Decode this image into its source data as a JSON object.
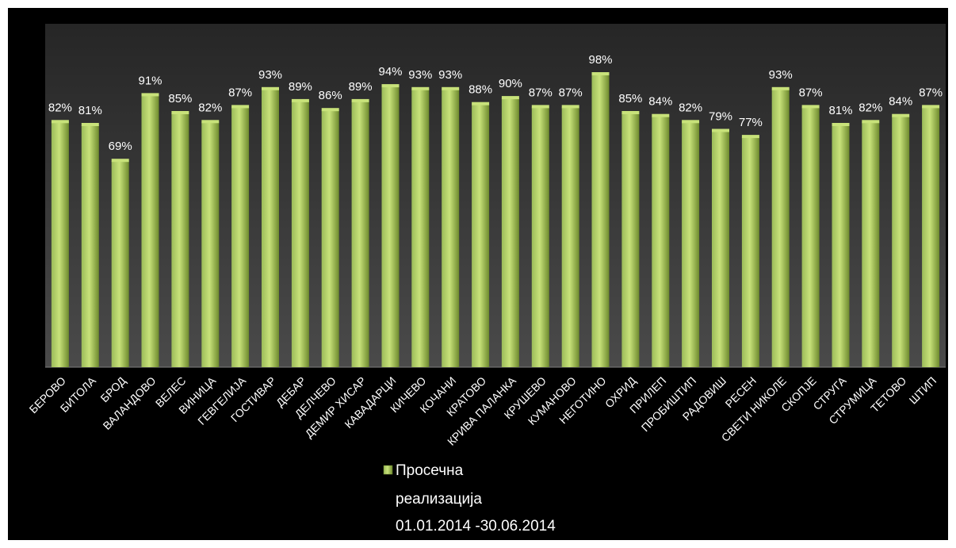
{
  "chart_data": {
    "type": "bar",
    "categories": [
      "БЕРОВО",
      "БИТОЛА",
      "БРОД",
      "ВАЛАНДОВО",
      "ВЕЛЕС",
      "ВИНИЦА",
      "ГЕВГЕЛИЈА",
      "ГОСТИВАР",
      "ДЕБАР",
      "ДЕЛЧЕВО",
      "ДЕМИР ХИСАР",
      "КАВАДАРЦИ",
      "КИЧЕВО",
      "КОЧАНИ",
      "КРАТОВО",
      "КРИВА ПАЛАНКА",
      "КРУШЕВО",
      "КУМАНОВО",
      "НЕГОТИНО",
      "ОХРИД",
      "ПРИЛЕП",
      "ПРОБИШТИП",
      "РАДОВИШ",
      "РЕСЕН",
      "СВЕТИ НИКОЛЕ",
      "СКОПЈЕ",
      "СТРУГА",
      "СТРУМИЦА",
      "ТЕТОВО",
      "ШТИП"
    ],
    "series": [
      {
        "name_lines": [
          "Просечна",
          "реализација",
          "01.01.2014 -30.06.2014"
        ],
        "values": [
          82,
          81,
          69,
          91,
          85,
          82,
          87,
          93,
          89,
          86,
          89,
          94,
          93,
          93,
          88,
          90,
          87,
          87,
          98,
          85,
          84,
          82,
          79,
          77,
          93,
          87,
          81,
          82,
          84,
          87
        ],
        "data_labels": [
          "82%",
          "81%",
          "69%",
          "91%",
          "85%",
          "82%",
          "87%",
          "93%",
          "89%",
          "86%",
          "89%",
          "94%",
          "93%",
          "93%",
          "88%",
          "90%",
          "87%",
          "87%",
          "98%",
          "85%",
          "84%",
          "82%",
          "79%",
          "77%",
          "93%",
          "87%",
          "81%",
          "82%",
          "84%",
          "87%"
        ]
      }
    ],
    "ylim": [
      0,
      115
    ],
    "grid": false,
    "legend_position": "bottom",
    "colors": {
      "bar_light": "#c8e27a",
      "bar_mid": "#9bbb59",
      "bar_dark": "#6e8a2e",
      "plot_area_top": "#262626",
      "plot_area_bottom": "#4a4a4a",
      "background": "#000000",
      "text": "#ffffff"
    }
  }
}
